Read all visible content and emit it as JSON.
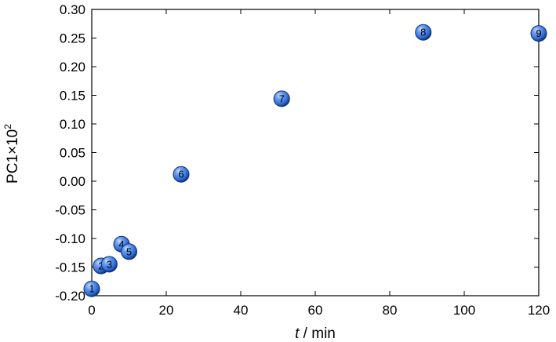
{
  "chart_data": {
    "type": "scatter",
    "xlabel_italic": "t",
    "xlabel_rest": " / min",
    "ylabel_main": "PC1×10",
    "ylabel_sup": "2",
    "xlim": [
      0,
      120
    ],
    "ylim": [
      -0.2,
      0.3
    ],
    "xticks": [
      0,
      20,
      40,
      60,
      80,
      100,
      120
    ],
    "yticks": [
      -0.2,
      -0.15,
      -0.1,
      -0.05,
      0.0,
      0.05,
      0.1,
      0.15,
      0.2,
      0.25,
      0.3
    ],
    "xtick_labels": [
      "0",
      "20",
      "40",
      "60",
      "80",
      "100",
      "120"
    ],
    "ytick_labels": [
      "-0.20",
      "-0.15",
      "-0.10",
      "-0.05",
      "0.00",
      "0.05",
      "0.10",
      "0.15",
      "0.20",
      "0.25",
      "0.30"
    ],
    "grid": false,
    "marker_color": "#2f6fd8",
    "points": [
      {
        "label": "1",
        "x": 0,
        "y": -0.188
      },
      {
        "label": "2",
        "x": 2.5,
        "y": -0.148
      },
      {
        "label": "3",
        "x": 4.7,
        "y": -0.145
      },
      {
        "label": "4",
        "x": 8,
        "y": -0.11
      },
      {
        "label": "5",
        "x": 10,
        "y": -0.123
      },
      {
        "label": "6",
        "x": 24,
        "y": 0.012
      },
      {
        "label": "7",
        "x": 51,
        "y": 0.144
      },
      {
        "label": "8",
        "x": 89,
        "y": 0.26
      },
      {
        "label": "9",
        "x": 120,
        "y": 0.258
      }
    ]
  }
}
